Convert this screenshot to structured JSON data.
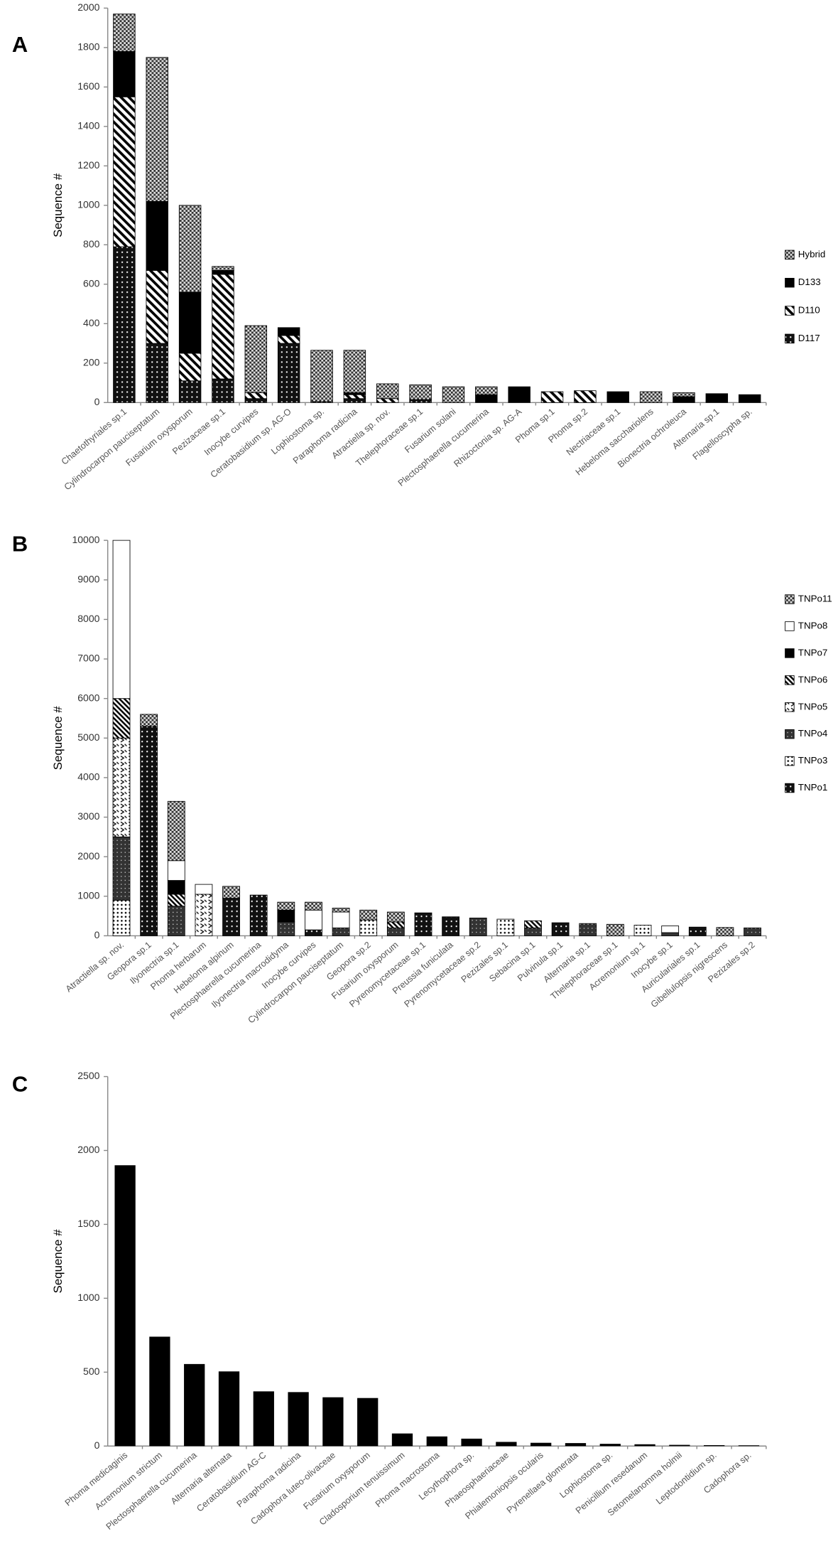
{
  "chart_data": [
    {
      "type": "bar",
      "panel": "A",
      "stacked": true,
      "ylabel": "Sequence #",
      "legend": "right",
      "categories": [
        "Chaetothyriales sp.1",
        "Cylindrocarpon pauciseptatum",
        "Fusarium oxysporum",
        "Pezizaceae sp.1",
        "Inocybe curvipes",
        "Ceratobasidium sp. AG-O",
        "Lophiostoma sp.",
        "Paraphoma radicina",
        "Atractiella sp. nov.",
        "Thelephoraceae sp.1",
        "Fusarium solani",
        "Plectosphaerella cucumerina",
        "Rhizoctonia sp. AG-A",
        "Phoma sp.1",
        "Phoma sp.2",
        "Nectriaceae sp.1",
        "Hebeloma sacchariolens",
        "Bionectria ochroleuca",
        "Alternaria sp.1",
        "Flagelloscypha sp."
      ],
      "series": [
        {
          "name": "D117",
          "color": "#000000",
          "pattern": "dots",
          "values": [
            790,
            300,
            110,
            120,
            20,
            300,
            5,
            20,
            0,
            15,
            0,
            0,
            0,
            0,
            0,
            0,
            0,
            0,
            0,
            0
          ]
        },
        {
          "name": "D110",
          "color": "#000000",
          "pattern": "diag",
          "values": [
            760,
            370,
            140,
            530,
            30,
            40,
            0,
            20,
            20,
            0,
            0,
            0,
            0,
            55,
            60,
            0,
            0,
            0,
            0,
            0
          ]
        },
        {
          "name": "D133",
          "color": "#000000",
          "pattern": "solid",
          "values": [
            230,
            350,
            310,
            20,
            0,
            40,
            0,
            10,
            0,
            0,
            0,
            40,
            80,
            0,
            0,
            55,
            0,
            30,
            45,
            40
          ]
        },
        {
          "name": "Hybrid",
          "color": "#000000",
          "pattern": "checker",
          "values": [
            190,
            730,
            440,
            20,
            340,
            0,
            260,
            215,
            75,
            75,
            80,
            40,
            0,
            0,
            0,
            0,
            55,
            20,
            0,
            0
          ]
        }
      ],
      "ylim": [
        0,
        2000
      ],
      "yticks": [
        0,
        200,
        400,
        600,
        800,
        1000,
        1200,
        1400,
        1600,
        1800,
        2000
      ]
    },
    {
      "type": "bar",
      "panel": "B",
      "stacked": true,
      "ylabel": "Sequence #",
      "legend": "right",
      "categories": [
        "Atractiella sp. nov.",
        "Geopora sp.1",
        "Ilyonectria sp.1",
        "Phoma herbarum",
        "Hebeloma alpinum",
        "Plectosphaerella cucumerina",
        "Ilyonectria macrodidyma",
        "Inocybe curvipes",
        "Cylindrocarpon pauciseptatum",
        "Geopora sp.2",
        "Fusarium oxysporum",
        "Pyrenomycetaceae sp.1",
        "Preussia funiculata",
        "Pyrenomycetaceae sp.2",
        "Pezizales sp.1",
        "Sebacina sp.1",
        "Pulvinula sp.1",
        "Alternaria sp.1",
        "Thelephoraceae sp.1",
        "Acremonium sp.1",
        "Inocybe sp.1",
        "Auriculariales sp.1",
        "Gibellulopsis nigrescens",
        "Pezizales sp.2"
      ],
      "series": [
        {
          "name": "TNPo1",
          "color": "#000000",
          "pattern": "dots",
          "values": [
            0,
            5300,
            0,
            0,
            950,
            1030,
            0,
            150,
            0,
            0,
            0,
            580,
            480,
            0,
            0,
            0,
            330,
            0,
            0,
            0,
            0,
            220,
            0,
            0
          ]
        },
        {
          "name": "TNPo3",
          "color": "#000000",
          "pattern": "light-dots",
          "values": [
            900,
            0,
            0,
            0,
            0,
            0,
            0,
            0,
            0,
            400,
            0,
            0,
            0,
            0,
            420,
            0,
            0,
            0,
            0,
            270,
            0,
            0,
            0,
            0
          ]
        },
        {
          "name": "TNPo4",
          "color": "#000000",
          "pattern": "cross-dark",
          "values": [
            1600,
            0,
            750,
            0,
            0,
            0,
            350,
            0,
            200,
            0,
            200,
            0,
            0,
            450,
            0,
            200,
            0,
            310,
            0,
            0,
            80,
            0,
            0,
            200
          ]
        },
        {
          "name": "TNPo5",
          "color": "#000000",
          "pattern": "zigzag",
          "values": [
            2500,
            0,
            0,
            1050,
            0,
            0,
            0,
            0,
            0,
            0,
            0,
            0,
            0,
            0,
            0,
            0,
            0,
            0,
            0,
            0,
            0,
            0,
            0,
            0
          ]
        },
        {
          "name": "TNPo6",
          "color": "#000000",
          "pattern": "diag-dense",
          "values": [
            1000,
            0,
            300,
            0,
            0,
            0,
            0,
            0,
            0,
            0,
            150,
            0,
            0,
            0,
            0,
            180,
            0,
            0,
            0,
            0,
            0,
            0,
            0,
            0
          ]
        },
        {
          "name": "TNPo7",
          "color": "#000000",
          "pattern": "solid",
          "values": [
            0,
            0,
            350,
            0,
            0,
            0,
            300,
            0,
            0,
            0,
            0,
            0,
            0,
            0,
            0,
            0,
            0,
            0,
            0,
            0,
            0,
            0,
            0,
            0
          ]
        },
        {
          "name": "TNPo8",
          "color": "#000000",
          "pattern": "white",
          "values": [
            4000,
            0,
            500,
            250,
            0,
            0,
            0,
            500,
            400,
            0,
            0,
            0,
            0,
            0,
            0,
            0,
            0,
            0,
            0,
            0,
            170,
            0,
            0,
            0
          ]
        },
        {
          "name": "TNPo11",
          "color": "#000000",
          "pattern": "checker",
          "values": [
            0,
            300,
            1500,
            0,
            300,
            0,
            200,
            200,
            100,
            250,
            250,
            0,
            0,
            0,
            0,
            0,
            0,
            0,
            290,
            0,
            0,
            0,
            210,
            0
          ]
        }
      ],
      "ylim": [
        0,
        10000
      ],
      "yticks": [
        0,
        1000,
        2000,
        3000,
        4000,
        5000,
        6000,
        7000,
        8000,
        9000,
        10000
      ]
    },
    {
      "type": "bar",
      "panel": "C",
      "ylabel": "Sequence #",
      "color": "#000000",
      "categories": [
        "Phoma medicaginis",
        "Acremonium strictum",
        "Plectosphaerella cucumerina",
        "Alternaria alternata",
        "Ceratobasidium AG-C",
        "Paraphoma radicina",
        "Cadophora luteo-olivaceae",
        "Fusarium oxysporum",
        "Cladosporium tenuissimum",
        "Phoma macrostoma",
        "Lecythophora sp.",
        "Phaeosphaeriaceae",
        "Phialemoniopsis ocularis",
        "Pyrenellaea glomerata",
        "Lophiostoma sp.",
        "Penicillium resedanum",
        "Setomelanomma holmii",
        "Leptodontidium sp.",
        "Cadophora sp."
      ],
      "values": [
        1900,
        740,
        555,
        505,
        370,
        365,
        330,
        325,
        85,
        65,
        50,
        28,
        22,
        20,
        15,
        12,
        8,
        6,
        5
      ],
      "ylim": [
        0,
        2500
      ],
      "yticks": [
        0,
        500,
        1000,
        1500,
        2000,
        2500
      ]
    }
  ]
}
